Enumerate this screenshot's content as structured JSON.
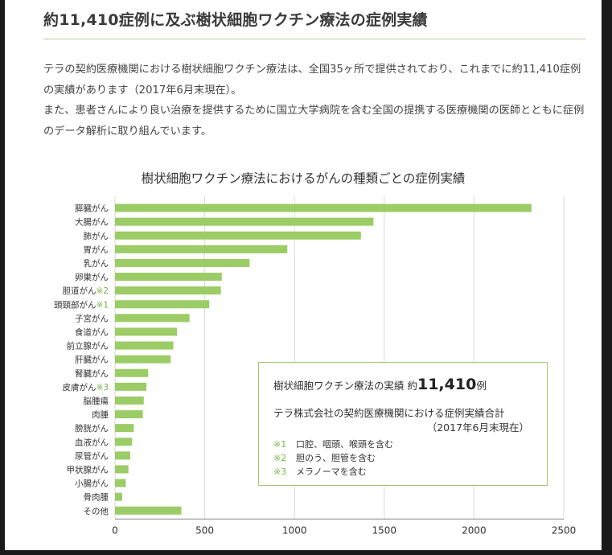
{
  "header": {
    "title": "約11,410症例に及ぶ樹状細胞ワクチン療法の症例実績"
  },
  "intro": {
    "paragraph1": "テラの契約医療機関における樹状細胞ワクチン療法は、全国35ヶ所で提供されており、これまでに約11,410症例の実績があります（2017年6月末現在）。",
    "paragraph2": "また、患者さんにより良い治療を提供するために国立大学病院を含む全国の提携する医療機関の医師とともに症例のデータ解析に取り組んでいます。"
  },
  "chart_data": {
    "type": "bar",
    "orientation": "horizontal",
    "title": "樹状細胞ワクチン療法におけるがんの種類ごとの症例実績",
    "categories": [
      {
        "label": "膵臓がん",
        "note": ""
      },
      {
        "label": "大腸がん",
        "note": ""
      },
      {
        "label": "肺がん",
        "note": ""
      },
      {
        "label": "胃がん",
        "note": ""
      },
      {
        "label": "乳がん",
        "note": ""
      },
      {
        "label": "卵巣がん",
        "note": ""
      },
      {
        "label": "胆道がん",
        "note": "※2"
      },
      {
        "label": "頭頸部がん",
        "note": "※1"
      },
      {
        "label": "子宮がん",
        "note": ""
      },
      {
        "label": "食道がん",
        "note": ""
      },
      {
        "label": "前立腺がん",
        "note": ""
      },
      {
        "label": "肝臓がん",
        "note": ""
      },
      {
        "label": "腎臓がん",
        "note": ""
      },
      {
        "label": "皮膚がん",
        "note": "※3"
      },
      {
        "label": "脳腫瘍",
        "note": ""
      },
      {
        "label": "肉腫",
        "note": ""
      },
      {
        "label": "膀胱がん",
        "note": ""
      },
      {
        "label": "血液がん",
        "note": ""
      },
      {
        "label": "尿管がん",
        "note": ""
      },
      {
        "label": "甲状腺がん",
        "note": ""
      },
      {
        "label": "小腸がん",
        "note": ""
      },
      {
        "label": "骨肉腫",
        "note": ""
      },
      {
        "label": "その他",
        "note": ""
      }
    ],
    "values": [
      2320,
      1440,
      1370,
      960,
      750,
      595,
      590,
      525,
      415,
      345,
      325,
      310,
      185,
      175,
      160,
      155,
      105,
      95,
      85,
      75,
      60,
      40,
      370
    ],
    "xlim": [
      0,
      2500
    ],
    "xticks": [
      "0",
      "500",
      "1000",
      "1500",
      "2000",
      "2500"
    ],
    "grid": true,
    "bar_color": "#9ccc65"
  },
  "infobox": {
    "heading": "樹状細胞ワクチン療法の実績 約",
    "total": "11,410",
    "unit": "例",
    "source": "テラ株式会社の契約医療機関における症例実績合計",
    "date": "（2017年6月末現在）",
    "notes": [
      {
        "mark": "※1",
        "text": "口腔、咽頭、喉頭を含む"
      },
      {
        "mark": "※2",
        "text": "胆のう、胆管を含む"
      },
      {
        "mark": "※3",
        "text": "メラノーマを含む"
      }
    ]
  },
  "colors": {
    "bar": "#9ccc65",
    "note_mark": "#7ab648",
    "box_border": "#9fcb6b",
    "rule": "#b5c98f"
  }
}
